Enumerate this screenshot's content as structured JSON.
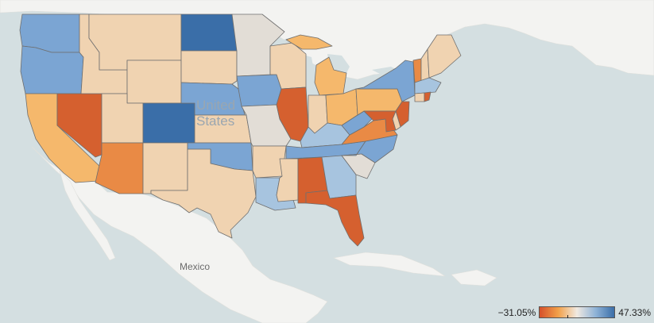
{
  "map": {
    "country_labels": [
      {
        "id": "mexico",
        "text": "Mexico"
      },
      {
        "id": "us_line1",
        "text": "United"
      },
      {
        "id": "us_line2",
        "text": "States"
      }
    ],
    "colors": {
      "ocean": "#d4dfe1",
      "land": "#f3f3f1",
      "strong_orange": "#d5602f",
      "orange": "#e98a45",
      "light_orange": "#f5b86c",
      "pale_orange": "#f0d3b1",
      "neutral": "#e2ddd6",
      "pale_blue": "#a7c4df",
      "blue": "#7ba5d3",
      "strong_blue": "#3a6ea8"
    },
    "states": [
      {
        "name": "Washington",
        "level": "blue"
      },
      {
        "name": "Oregon",
        "level": "blue"
      },
      {
        "name": "California",
        "level": "light_orange"
      },
      {
        "name": "Nevada",
        "level": "strong_orange"
      },
      {
        "name": "Idaho",
        "level": "pale_orange"
      },
      {
        "name": "Montana",
        "level": "pale_orange"
      },
      {
        "name": "Wyoming",
        "level": "pale_orange"
      },
      {
        "name": "Utah",
        "level": "pale_orange"
      },
      {
        "name": "Arizona",
        "level": "orange"
      },
      {
        "name": "Colorado",
        "level": "strong_blue"
      },
      {
        "name": "New Mexico",
        "level": "pale_orange"
      },
      {
        "name": "North Dakota",
        "level": "strong_blue"
      },
      {
        "name": "South Dakota",
        "level": "pale_orange"
      },
      {
        "name": "Nebraska",
        "level": "blue"
      },
      {
        "name": "Kansas",
        "level": "pale_orange"
      },
      {
        "name": "Oklahoma",
        "level": "blue"
      },
      {
        "name": "Texas",
        "level": "pale_orange"
      },
      {
        "name": "Minnesota",
        "level": "neutral"
      },
      {
        "name": "Iowa",
        "level": "blue"
      },
      {
        "name": "Missouri",
        "level": "neutral"
      },
      {
        "name": "Arkansas",
        "level": "pale_orange"
      },
      {
        "name": "Louisiana",
        "level": "pale_blue"
      },
      {
        "name": "Wisconsin",
        "level": "pale_orange"
      },
      {
        "name": "Illinois",
        "level": "strong_orange"
      },
      {
        "name": "Michigan",
        "level": "light_orange"
      },
      {
        "name": "Indiana",
        "level": "pale_orange"
      },
      {
        "name": "Ohio",
        "level": "light_orange"
      },
      {
        "name": "Kentucky",
        "level": "pale_blue"
      },
      {
        "name": "Tennessee",
        "level": "blue"
      },
      {
        "name": "Mississippi",
        "level": "pale_orange"
      },
      {
        "name": "Alabama",
        "level": "strong_orange"
      },
      {
        "name": "Georgia",
        "level": "pale_blue"
      },
      {
        "name": "Florida",
        "level": "strong_orange"
      },
      {
        "name": "South Carolina",
        "level": "neutral"
      },
      {
        "name": "North Carolina",
        "level": "blue"
      },
      {
        "name": "Virginia",
        "level": "orange"
      },
      {
        "name": "West Virginia",
        "level": "blue"
      },
      {
        "name": "Pennsylvania",
        "level": "light_orange"
      },
      {
        "name": "New York",
        "level": "blue"
      },
      {
        "name": "Vermont",
        "level": "orange"
      },
      {
        "name": "New Hampshire",
        "level": "pale_orange"
      },
      {
        "name": "Maine",
        "level": "pale_orange"
      },
      {
        "name": "Massachusetts",
        "level": "pale_blue"
      },
      {
        "name": "Rhode Island",
        "level": "strong_orange"
      },
      {
        "name": "Connecticut",
        "level": "pale_orange"
      },
      {
        "name": "New Jersey",
        "level": "strong_orange"
      },
      {
        "name": "Delaware",
        "level": "pale_orange"
      },
      {
        "name": "Maryland",
        "level": "strong_orange"
      }
    ]
  },
  "legend": {
    "min_label": "−31.05%",
    "max_label": "47.33%",
    "gradient": [
      "#d5502a",
      "#f2a14a",
      "#f0e9e1",
      "#8fb3d7",
      "#3a6ea8"
    ]
  }
}
